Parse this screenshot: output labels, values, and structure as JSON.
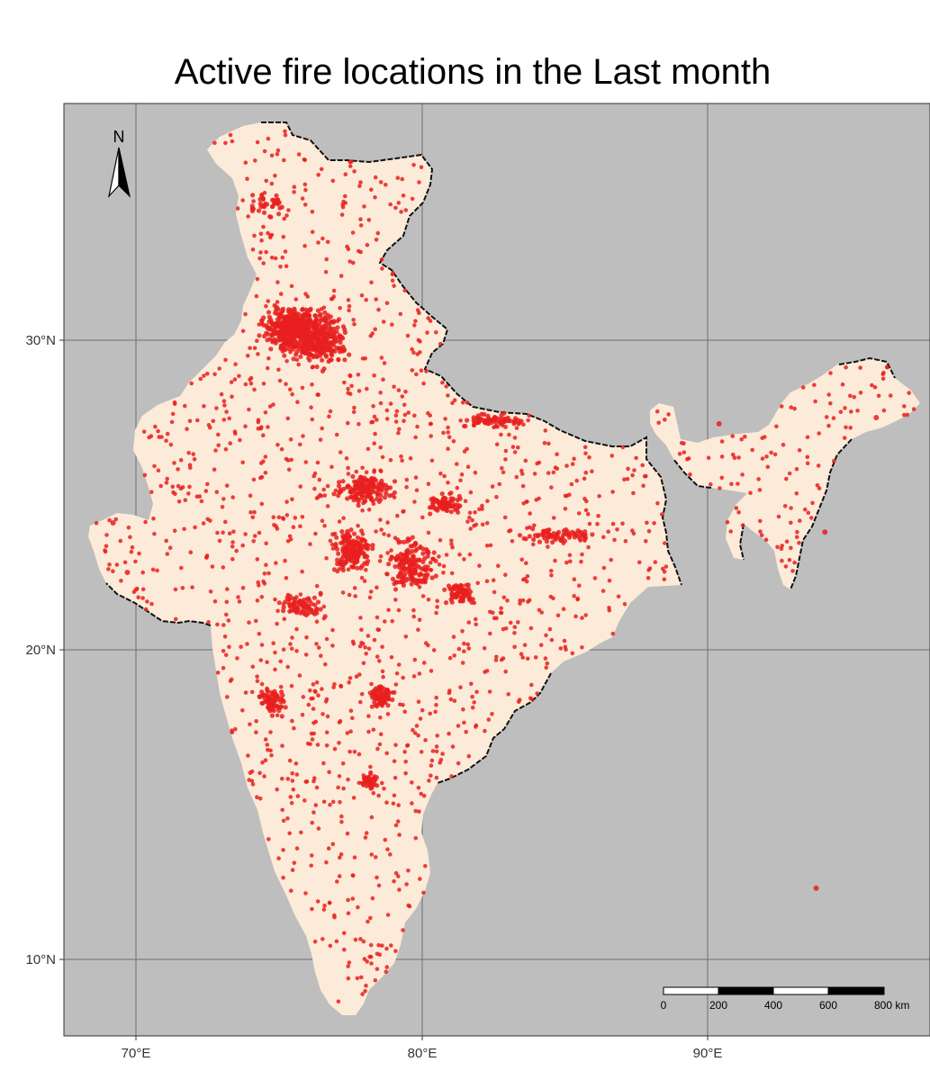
{
  "title": "Active fire locations in the Last month",
  "north_arrow": {
    "label": "N"
  },
  "axes": {
    "x_ticks": [
      "70°E",
      "80°E",
      "90°E"
    ],
    "y_ticks": [
      "30°N",
      "20°N",
      "10°N"
    ]
  },
  "scale_bar": {
    "labels": [
      "0",
      "200",
      "400",
      "600",
      "800 km"
    ]
  },
  "colors": {
    "ocean": "#bebebe",
    "land": "#fcebd9",
    "fire": "#e8201e",
    "grid": "#6f6f6f"
  },
  "chart_data": {
    "type": "scatter",
    "title": "Active fire locations in the Last month",
    "xlim": [
      67.5,
      97.5
    ],
    "ylim": [
      7.6,
      37.5
    ],
    "x_ticks": [
      70,
      80,
      90
    ],
    "y_ticks": [
      30,
      20,
      10
    ],
    "dense_clusters": [
      {
        "lon": 75.6,
        "lat": 30.3,
        "spread_lon": 1.4,
        "spread_lat": 0.9,
        "density": "very high"
      },
      {
        "lon": 76.6,
        "lat": 29.9,
        "spread_lon": 1.0,
        "spread_lat": 1.0,
        "density": "high"
      },
      {
        "lon": 78.0,
        "lat": 25.2,
        "spread_lon": 1.2,
        "spread_lat": 0.6,
        "density": "high"
      },
      {
        "lon": 77.6,
        "lat": 23.2,
        "spread_lon": 0.8,
        "spread_lat": 0.8,
        "density": "high"
      },
      {
        "lon": 79.6,
        "lat": 22.8,
        "spread_lon": 1.0,
        "spread_lat": 1.0,
        "density": "high"
      },
      {
        "lon": 81.4,
        "lat": 21.8,
        "spread_lon": 0.7,
        "spread_lat": 0.5,
        "density": "medium"
      },
      {
        "lon": 80.7,
        "lat": 24.7,
        "spread_lon": 0.8,
        "spread_lat": 0.4,
        "density": "medium"
      },
      {
        "lon": 82.6,
        "lat": 27.4,
        "spread_lon": 1.4,
        "spread_lat": 0.3,
        "density": "medium"
      },
      {
        "lon": 78.6,
        "lat": 18.5,
        "spread_lon": 0.5,
        "spread_lat": 0.4,
        "density": "medium"
      },
      {
        "lon": 74.8,
        "lat": 18.3,
        "spread_lon": 0.6,
        "spread_lat": 0.6,
        "density": "medium"
      },
      {
        "lon": 84.8,
        "lat": 23.7,
        "spread_lon": 1.6,
        "spread_lat": 0.3,
        "density": "medium"
      },
      {
        "lon": 75.8,
        "lat": 21.4,
        "spread_lon": 1.0,
        "spread_lat": 0.5,
        "density": "medium"
      },
      {
        "lon": 78.2,
        "lat": 15.8,
        "spread_lon": 0.4,
        "spread_lat": 0.4,
        "density": "low"
      },
      {
        "lon": 74.6,
        "lat": 34.4,
        "spread_lon": 0.8,
        "spread_lat": 0.6,
        "density": "low"
      }
    ],
    "isolated_points": [
      {
        "lon": 93.8,
        "lat": 12.3
      },
      {
        "lon": 95.9,
        "lat": 27.5
      },
      {
        "lon": 94.1,
        "lat": 23.8
      },
      {
        "lon": 90.4,
        "lat": 27.3
      },
      {
        "lon": 69.7,
        "lat": 22.5
      },
      {
        "lon": 69.2,
        "lat": 24.1
      }
    ]
  }
}
